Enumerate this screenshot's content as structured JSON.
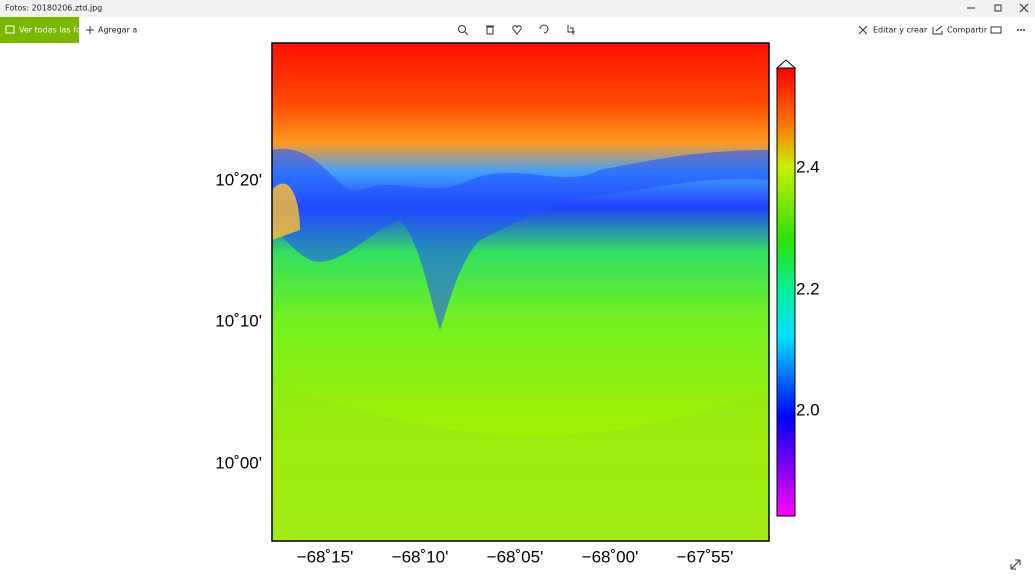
{
  "window": {
    "title": "Fotos: 20180206.ztd.jpg"
  },
  "toolbar": {
    "back": "Ver todas las fotos",
    "add": "Agregar a",
    "edit": "Editar y crear",
    "share": "Compartir"
  },
  "image": {
    "lat_labels": [
      "10˚20'",
      "10˚10'",
      "10˚00'"
    ],
    "lon_labels": [
      "−68˚15'",
      "−68˚10'",
      "−68˚05'",
      "−68˚00'",
      "−67˚55'"
    ],
    "colorbar_labels": [
      "2.4",
      "2.2",
      "2.0"
    ]
  }
}
